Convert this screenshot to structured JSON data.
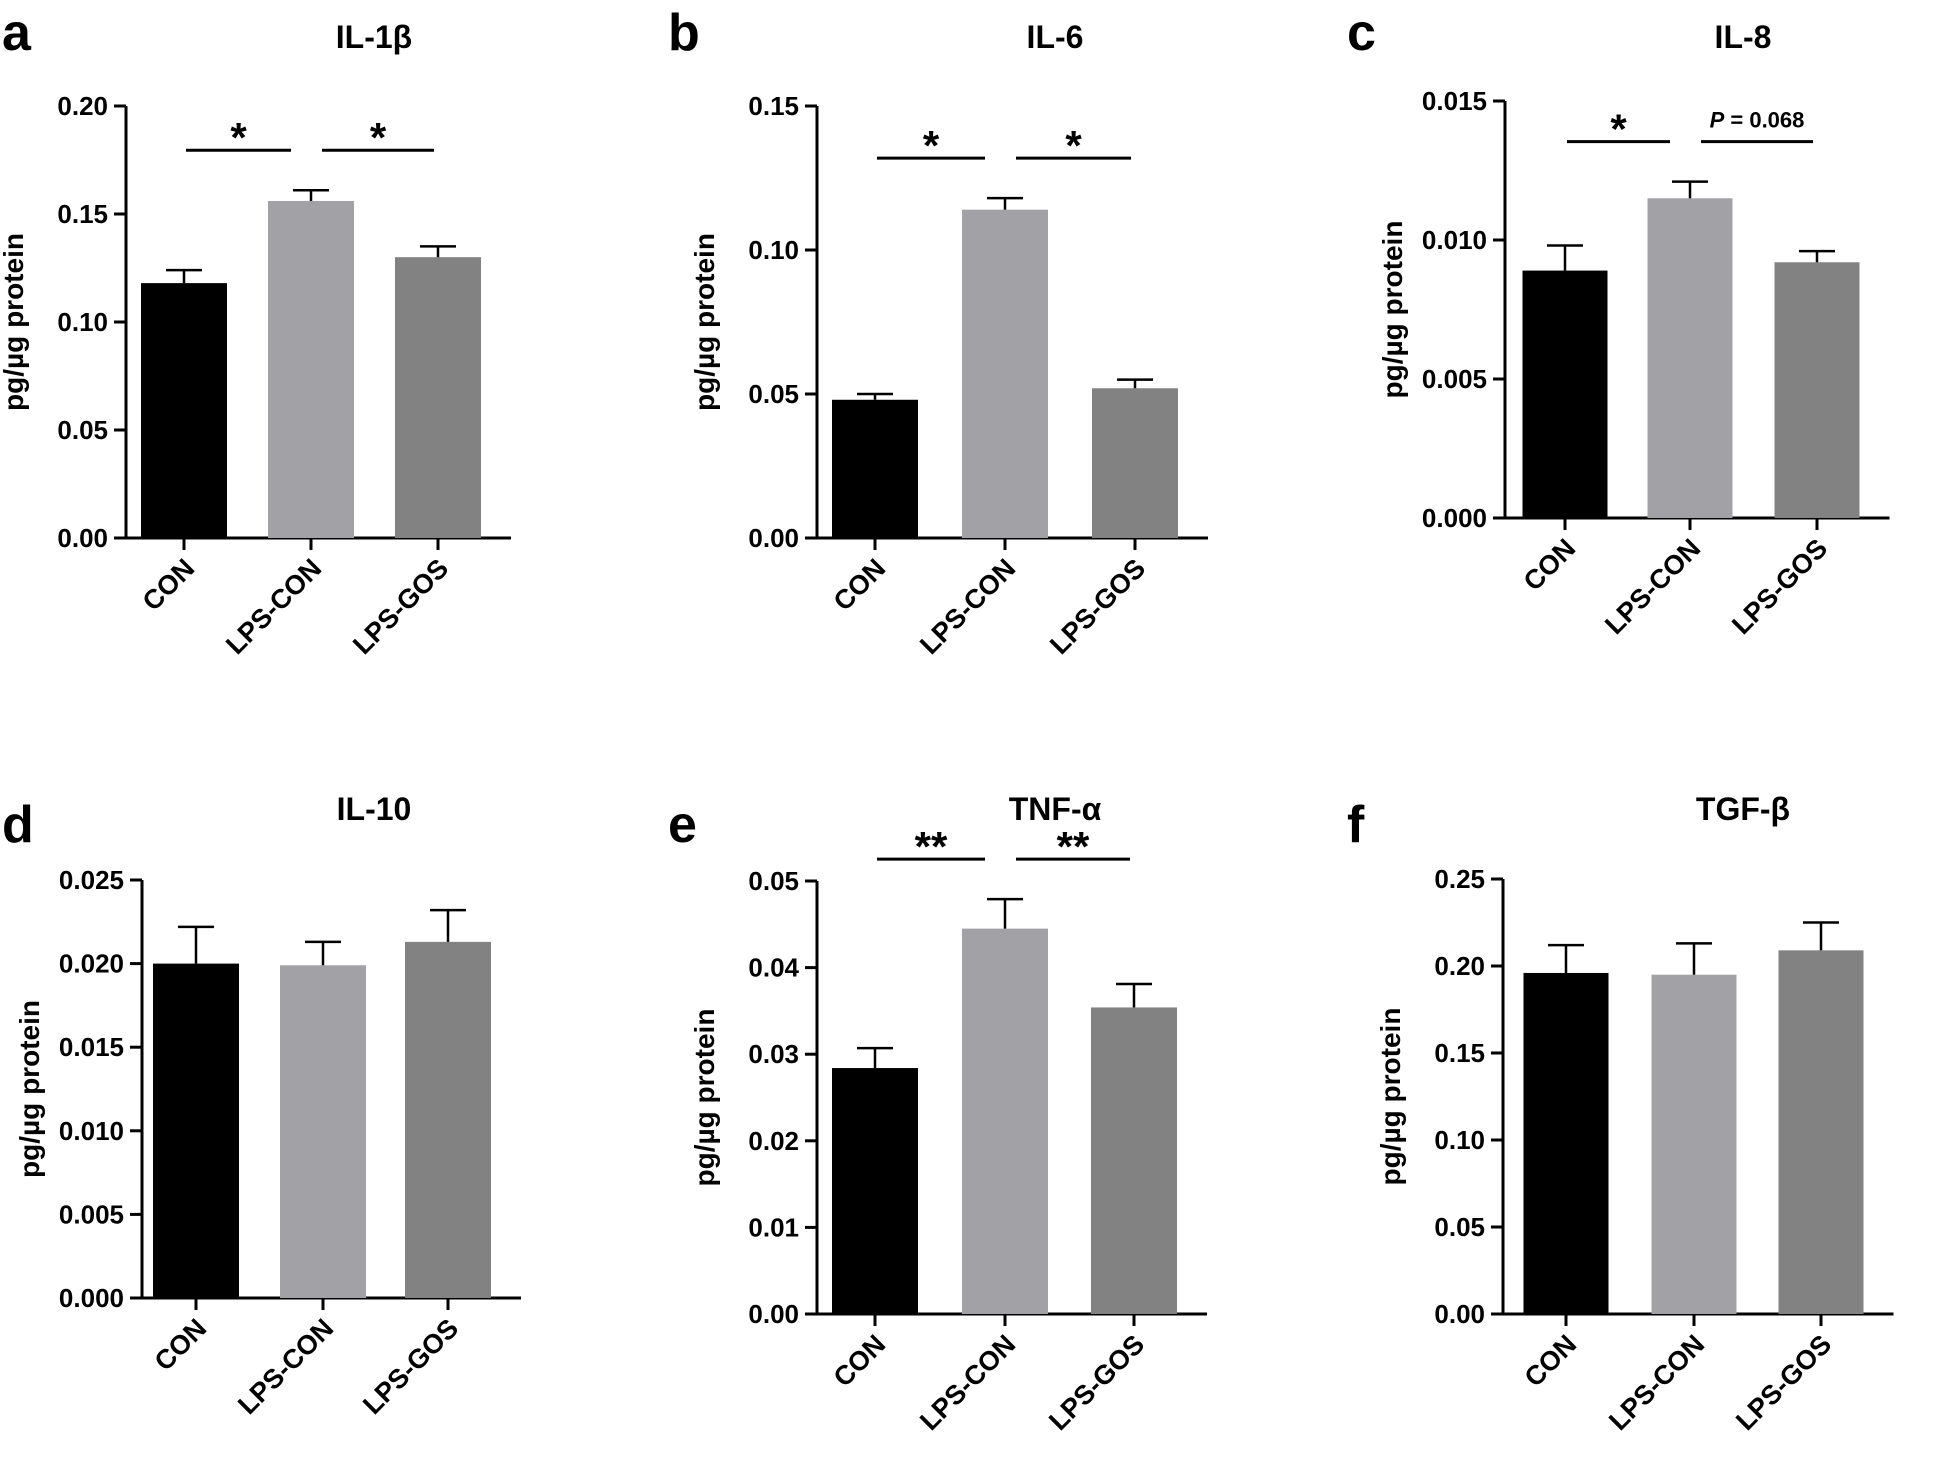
{
  "figure": {
    "ylabel": "pg/µg protein",
    "categories": [
      "CON",
      "LPS-CON",
      "LPS-GOS"
    ],
    "bar_colors": [
      "#000000",
      "#a2a2a6",
      "#828282"
    ]
  },
  "chart_data": [
    {
      "type": "bar",
      "panel": "a",
      "title": "IL-1β",
      "ylabel": "pg/µg protein",
      "categories": [
        "CON",
        "LPS-CON",
        "LPS-GOS"
      ],
      "values": [
        0.118,
        0.156,
        0.13
      ],
      "errors": [
        0.006,
        0.005,
        0.005
      ],
      "ylim": [
        0,
        0.2
      ],
      "yticks": [
        "0.00",
        "0.05",
        "0.10",
        "0.15",
        "0.20"
      ],
      "annotations": [
        {
          "from": 0,
          "to": 1,
          "label": "*"
        },
        {
          "from": 1,
          "to": 2,
          "label": "*"
        }
      ]
    },
    {
      "type": "bar",
      "panel": "b",
      "title": "IL-6",
      "ylabel": "pg/µg protein",
      "categories": [
        "CON",
        "LPS-CON",
        "LPS-GOS"
      ],
      "values": [
        0.048,
        0.114,
        0.052
      ],
      "errors": [
        0.002,
        0.004,
        0.003
      ],
      "ylim": [
        0,
        0.15
      ],
      "yticks": [
        "0.00",
        "0.05",
        "0.10",
        "0.15"
      ],
      "annotations": [
        {
          "from": 0,
          "to": 1,
          "label": "*"
        },
        {
          "from": 1,
          "to": 2,
          "label": "*"
        }
      ]
    },
    {
      "type": "bar",
      "panel": "c",
      "title": "IL-8",
      "ylabel": "pg/µg protein",
      "categories": [
        "CON",
        "LPS-CON",
        "LPS-GOS"
      ],
      "values": [
        0.0089,
        0.0115,
        0.0092
      ],
      "errors": [
        0.0009,
        0.0006,
        0.0004
      ],
      "ylim": [
        0,
        0.015
      ],
      "yticks": [
        "0.000",
        "0.005",
        "0.010",
        "0.015"
      ],
      "annotations": [
        {
          "from": 0,
          "to": 1,
          "label": "*"
        },
        {
          "from": 1,
          "to": 2,
          "label": "P = 0.068",
          "italic_prefix": "P",
          "rest": " = 0.068"
        }
      ]
    },
    {
      "type": "bar",
      "panel": "d",
      "title": "IL-10",
      "ylabel": "pg/µg protein",
      "categories": [
        "CON",
        "LPS-CON",
        "LPS-GOS"
      ],
      "values": [
        0.02,
        0.0199,
        0.0213
      ],
      "errors": [
        0.0022,
        0.0014,
        0.0019
      ],
      "ylim": [
        0,
        0.025
      ],
      "yticks": [
        "0.000",
        "0.005",
        "0.010",
        "0.015",
        "0.020",
        "0.025"
      ],
      "annotations": []
    },
    {
      "type": "bar",
      "panel": "e",
      "title": "TNF-α",
      "ylabel": "pg/µg protein",
      "categories": [
        "CON",
        "LPS-CON",
        "LPS-GOS"
      ],
      "values": [
        0.0284,
        0.0445,
        0.0354
      ],
      "errors": [
        0.0023,
        0.0034,
        0.0027
      ],
      "ylim": [
        0,
        0.05
      ],
      "yticks": [
        "0.00",
        "0.01",
        "0.02",
        "0.03",
        "0.04",
        "0.05"
      ],
      "annotations": [
        {
          "from": 0,
          "to": 1,
          "label": "**"
        },
        {
          "from": 1,
          "to": 2,
          "label": "**"
        }
      ]
    },
    {
      "type": "bar",
      "panel": "f",
      "title": "TGF-β",
      "ylabel": "pg/µg protein",
      "categories": [
        "CON",
        "LPS-CON",
        "LPS-GOS"
      ],
      "values": [
        0.196,
        0.195,
        0.209
      ],
      "errors": [
        0.016,
        0.018,
        0.016
      ],
      "ylim": [
        0,
        0.25
      ],
      "yticks": [
        "0.00",
        "0.05",
        "0.10",
        "0.15",
        "0.20",
        "0.25"
      ],
      "annotations": []
    }
  ]
}
